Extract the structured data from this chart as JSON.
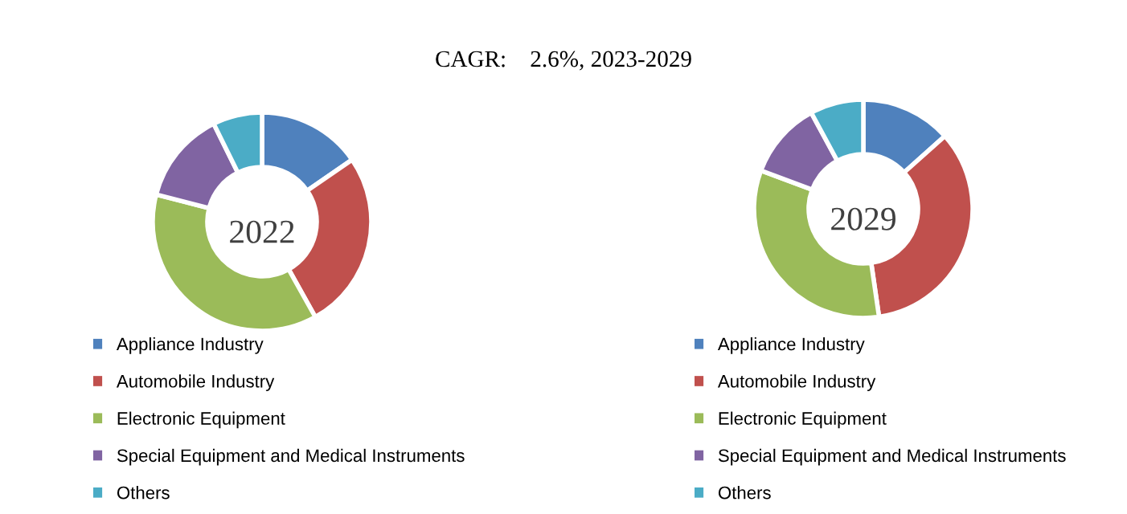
{
  "chart_data": [
    {
      "type": "donut",
      "title": "2022",
      "annotations": [
        "CAGR:    2.6%, 2023-2029"
      ],
      "categories": [
        "Appliance Industry",
        "Automobile Industry",
        "Electronic Equipment",
        "Special Equipment and Medical Instruments",
        "Others"
      ],
      "values": [
        15.4,
        26.5,
        37.1,
        13.7,
        7.3
      ],
      "colors": [
        "#4f81bd",
        "#c0504d",
        "#9bbb59",
        "#8064a2",
        "#4bacc6"
      ],
      "legend": "bottom"
    },
    {
      "type": "donut",
      "title": "2029",
      "categories": [
        "Appliance Industry",
        "Automobile Industry",
        "Electronic Equipment",
        "Special Equipment and Medical Instruments",
        "Others"
      ],
      "values": [
        13.4,
        34.3,
        33.0,
        11.4,
        7.9
      ],
      "colors": [
        "#4f81bd",
        "#c0504d",
        "#9bbb59",
        "#8064a2",
        "#4bacc6"
      ],
      "legend": "bottom"
    }
  ]
}
